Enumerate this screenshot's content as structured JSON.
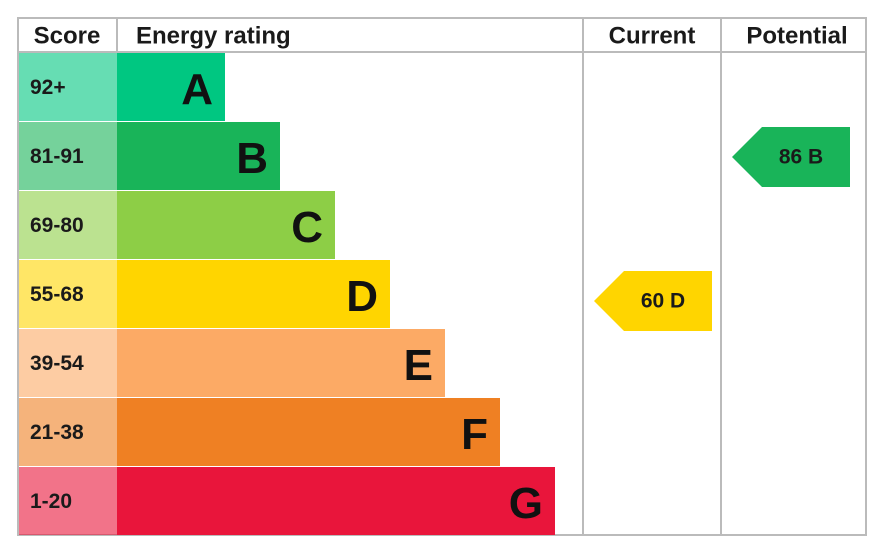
{
  "header": {
    "score": "Score",
    "energy_rating": "Energy rating",
    "current": "Current",
    "potential": "Potential"
  },
  "bands": [
    {
      "score": "92+",
      "letter": "A",
      "color": "#00c781"
    },
    {
      "score": "81-91",
      "letter": "B",
      "color": "#19b459"
    },
    {
      "score": "69-80",
      "letter": "C",
      "color": "#8dce46"
    },
    {
      "score": "55-68",
      "letter": "D",
      "color": "#ffd500"
    },
    {
      "score": "39-54",
      "letter": "E",
      "color": "#fcaa65"
    },
    {
      "score": "21-38",
      "letter": "F",
      "color": "#ef8023"
    },
    {
      "score": "1-20",
      "letter": "G",
      "color": "#e9153b"
    }
  ],
  "current": "60 D",
  "potential": "86 B"
}
